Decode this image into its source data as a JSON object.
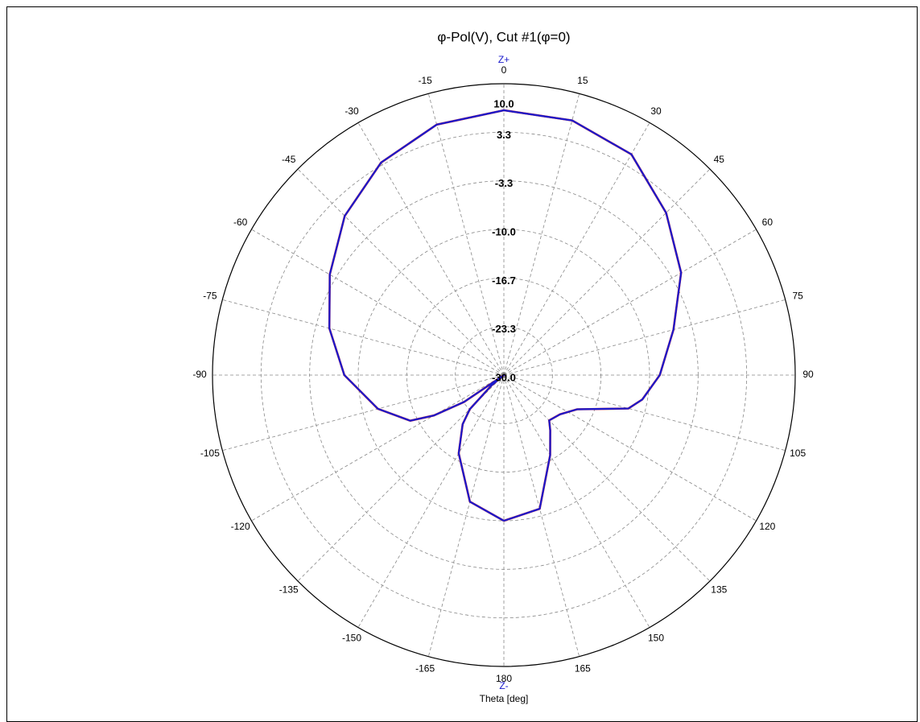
{
  "chart_data": {
    "type": "polar",
    "title": "φ-Pol(V), Cut #1(φ=0)",
    "theta_label": "Theta [deg]",
    "zenith_label": "Z+",
    "nadir_label": "Z-",
    "theta_direction": "clockwise",
    "theta_zero": "top",
    "rlim": [
      -30,
      10
    ],
    "rticks": [
      {
        "value": 10,
        "label": "10.0"
      },
      {
        "value": 3.333,
        "label": "3.3"
      },
      {
        "value": -3.333,
        "label": "-3.3"
      },
      {
        "value": -10,
        "label": "-10.0"
      },
      {
        "value": -16.667,
        "label": "-16.7"
      },
      {
        "value": -23.333,
        "label": "-23.3"
      },
      {
        "value": -30,
        "label": "-30.0"
      }
    ],
    "thetaticks": [
      0,
      15,
      30,
      45,
      60,
      75,
      90,
      105,
      120,
      135,
      150,
      165,
      180,
      -165,
      -150,
      -135,
      -120,
      -105,
      -90,
      -75,
      -60,
      -45,
      -30,
      -15
    ],
    "grid": true,
    "theta": [
      -180,
      -165,
      -150,
      -140,
      -135,
      -130,
      -127,
      -124,
      -120,
      -116,
      -105,
      -90,
      -75,
      -60,
      -45,
      -30,
      -15,
      0,
      15,
      30,
      45,
      60,
      75,
      90,
      100,
      105,
      115,
      125,
      135,
      140,
      150,
      165,
      180
    ],
    "series": [
      {
        "color": "#e02020",
        "values": [
          -10.0,
          -12.0,
          -17.6,
          -21.2,
          -23.4,
          -27.8,
          -30,
          -23.4,
          -18.9,
          -15.7,
          -12.1,
          -8.1,
          -5.2,
          -2.4,
          0.9,
          3.7,
          5.6,
          6.35,
          6.2,
          5.0,
          1.5,
          -1.9,
          -5.9,
          -8.6,
          -10.7,
          -12.3,
          -18.9,
          -20.6,
          -21.2,
          -20.1,
          -17.3,
          -11.0,
          -10.0
        ]
      },
      {
        "color": "#1a1acc",
        "values": [
          -10.0,
          -12.0,
          -17.6,
          -21.2,
          -23.4,
          -27.8,
          -30,
          -23.4,
          -18.9,
          -15.7,
          -12.1,
          -8.1,
          -5.2,
          -2.4,
          0.9,
          3.7,
          5.6,
          6.35,
          6.2,
          5.0,
          1.5,
          -1.9,
          -5.9,
          -8.6,
          -10.7,
          -12.3,
          -18.9,
          -20.6,
          -21.2,
          -20.1,
          -17.3,
          -11.0,
          -10.0
        ]
      }
    ]
  }
}
